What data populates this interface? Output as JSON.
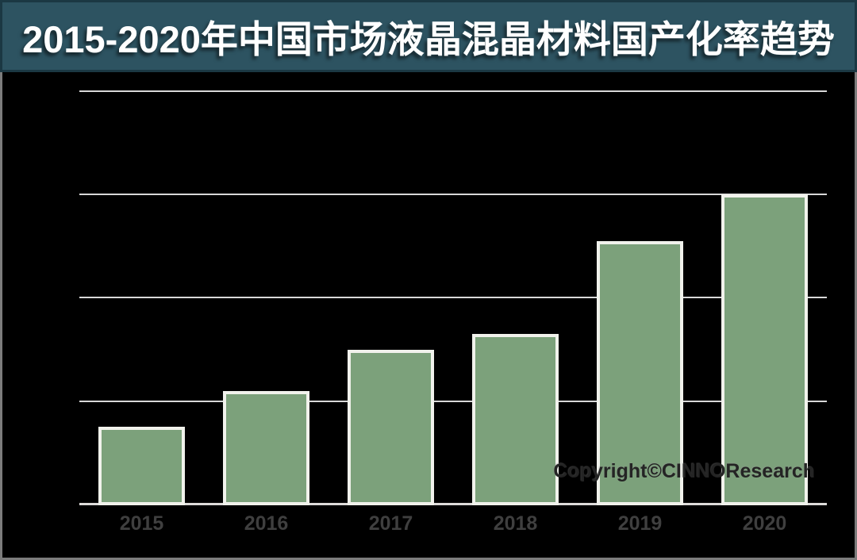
{
  "title": {
    "text": "2015-2020年中国市场液晶混晶材料国产化率趋势"
  },
  "watermark": {
    "text": "Copyright©CINNOResearch"
  },
  "colors": {
    "title_background": "#2d5361",
    "title_border": "#1b3843",
    "title_text": "#ffffff",
    "chart_background": "#000000",
    "bar_fill": "#7ca17b",
    "bar_border": "#f1f2ec",
    "gridline": "#d8d8d8",
    "axis_label": "#3f3f3f",
    "watermark_text": "#242424",
    "outer_frame": "#7c7c7c"
  },
  "chart_data": {
    "type": "bar",
    "title": "2015-2020年中国市场液晶混晶材料国产化率趋势",
    "categories": [
      "2015",
      "2016",
      "2017",
      "2018",
      "2019",
      "2020"
    ],
    "values": [
      7.5,
      11,
      15,
      16.5,
      25.5,
      30
    ],
    "unit": "%",
    "series_name": "液晶混晶材料国产化率",
    "xlabel": "",
    "ylabel": "",
    "ylim": [
      0,
      42
    ],
    "gridline_values": [
      10,
      20,
      30,
      40
    ],
    "grid": "horizontal",
    "y_axis_labels_visible": false,
    "data_labels_visible": false,
    "legend": "none",
    "annotations": [
      "Copyright©CINNOResearch"
    ]
  }
}
